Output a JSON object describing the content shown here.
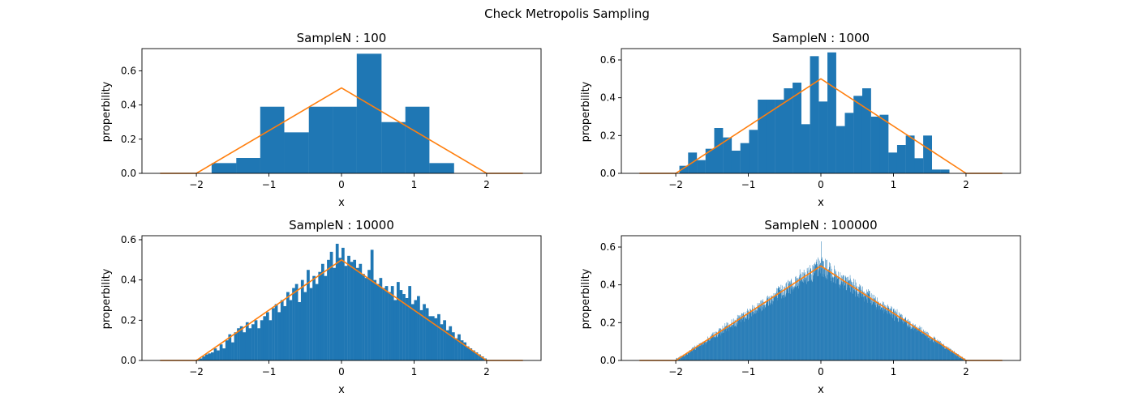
{
  "figure": {
    "title": "Check Metropolis Sampling"
  },
  "colors": {
    "histogram": "#1f77b4",
    "density": "#ff7f0e",
    "frame": "#000000"
  },
  "chart_data": [
    {
      "type": "bar",
      "title": "SampleN : 100",
      "xlabel": "x",
      "ylabel": "properbility",
      "xlim": [
        -2.75,
        2.75
      ],
      "ylim": [
        0,
        0.73
      ],
      "xticks": [
        -2,
        -1,
        0,
        1,
        2
      ],
      "xtick_labels": [
        "−2",
        "−1",
        "0",
        "1",
        "2"
      ],
      "yticks": [
        0,
        0.2,
        0.4,
        0.6
      ],
      "ytick_labels": [
        "0.0",
        "0.2",
        "0.4",
        "0.6"
      ],
      "bin_edges": [
        -1.79,
        -1.45,
        -1.12,
        -0.79,
        -0.45,
        -0.12,
        0.21,
        0.55,
        0.88,
        1.21,
        1.55
      ],
      "values": [
        0.06,
        0.09,
        0.39,
        0.24,
        0.39,
        0.39,
        0.7,
        0.3,
        0.39,
        0.06
      ],
      "density_line": {
        "x": [
          -2.5,
          -2,
          0,
          2,
          2.5
        ],
        "y": [
          0,
          0,
          0.5,
          0,
          0
        ]
      }
    },
    {
      "type": "bar",
      "title": "SampleN : 1000",
      "xlabel": "x",
      "ylabel": "properbility",
      "xlim": [
        -2.75,
        2.75
      ],
      "ylim": [
        0,
        0.66
      ],
      "xticks": [
        -2,
        -1,
        0,
        1,
        2
      ],
      "xtick_labels": [
        "−2",
        "−1",
        "0",
        "1",
        "2"
      ],
      "yticks": [
        0,
        0.2,
        0.4,
        0.6
      ],
      "ytick_labels": [
        "0.0",
        "0.2",
        "0.4",
        "0.6"
      ],
      "bin_edges": [
        -1.95,
        -1.83,
        -1.71,
        -1.59,
        -1.47,
        -1.35,
        -1.23,
        -1.11,
        -0.99,
        -0.87,
        -0.75,
        -0.63,
        -0.51,
        -0.39,
        -0.27,
        -0.15,
        -0.03,
        0.09,
        0.21,
        0.33,
        0.45,
        0.57,
        0.69,
        0.81,
        0.93,
        1.05,
        1.17,
        1.29,
        1.41,
        1.53,
        1.65,
        1.77,
        1.89
      ],
      "values": [
        0.04,
        0.11,
        0.07,
        0.13,
        0.24,
        0.19,
        0.12,
        0.16,
        0.23,
        0.39,
        0.39,
        0.39,
        0.45,
        0.48,
        0.26,
        0.62,
        0.38,
        0.64,
        0.25,
        0.32,
        0.41,
        0.45,
        0.3,
        0.31,
        0.11,
        0.15,
        0.2,
        0.08,
        0.2,
        0.02,
        0.02,
        0.0
      ],
      "density_line": {
        "x": [
          -2.5,
          -2,
          0,
          2,
          2.5
        ],
        "y": [
          0,
          0,
          0.5,
          0,
          0
        ]
      }
    },
    {
      "type": "bar",
      "title": "SampleN : 10000",
      "xlabel": "x",
      "ylabel": "properbility",
      "xlim": [
        -2.75,
        2.75
      ],
      "ylim": [
        0,
        0.62
      ],
      "xticks": [
        -2,
        -1,
        0,
        1,
        2
      ],
      "xtick_labels": [
        "−2",
        "−1",
        "0",
        "1",
        "2"
      ],
      "yticks": [
        0,
        0.2,
        0.4,
        0.6
      ],
      "ytick_labels": [
        "0.0",
        "0.2",
        "0.4",
        "0.6"
      ],
      "hist_range": [
        -2,
        2
      ],
      "bin_count": 100,
      "values": [
        0.005,
        0.01,
        0.02,
        0.03,
        0.035,
        0.04,
        0.06,
        0.05,
        0.08,
        0.06,
        0.1,
        0.13,
        0.09,
        0.14,
        0.16,
        0.17,
        0.14,
        0.19,
        0.16,
        0.18,
        0.2,
        0.16,
        0.2,
        0.22,
        0.24,
        0.2,
        0.26,
        0.28,
        0.24,
        0.3,
        0.27,
        0.34,
        0.3,
        0.36,
        0.38,
        0.29,
        0.4,
        0.34,
        0.45,
        0.36,
        0.42,
        0.38,
        0.44,
        0.48,
        0.42,
        0.5,
        0.54,
        0.46,
        0.58,
        0.51,
        0.56,
        0.47,
        0.52,
        0.49,
        0.5,
        0.46,
        0.48,
        0.43,
        0.41,
        0.45,
        0.55,
        0.4,
        0.38,
        0.41,
        0.36,
        0.37,
        0.34,
        0.37,
        0.3,
        0.39,
        0.35,
        0.33,
        0.31,
        0.37,
        0.28,
        0.3,
        0.32,
        0.25,
        0.28,
        0.26,
        0.22,
        0.22,
        0.21,
        0.23,
        0.18,
        0.2,
        0.15,
        0.17,
        0.14,
        0.11,
        0.13,
        0.1,
        0.09,
        0.07,
        0.06,
        0.05,
        0.04,
        0.03,
        0.02,
        0.01
      ],
      "density_line": {
        "x": [
          -2.5,
          -2,
          0,
          2,
          2.5
        ],
        "y": [
          0,
          0,
          0.5,
          0,
          0
        ]
      }
    },
    {
      "type": "bar",
      "title": "SampleN : 100000",
      "xlabel": "x",
      "ylabel": "properbility",
      "xlim": [
        -2.75,
        2.75
      ],
      "ylim": [
        0,
        0.66
      ],
      "xticks": [
        -2,
        -1,
        0,
        1,
        2
      ],
      "xtick_labels": [
        "−2",
        "−1",
        "0",
        "1",
        "2"
      ],
      "yticks": [
        0,
        0.2,
        0.4,
        0.6
      ],
      "ytick_labels": [
        "0.0",
        "0.2",
        "0.4",
        "0.6"
      ],
      "hist_range": [
        -2,
        2
      ],
      "bin_count": 1000,
      "peak_spike": {
        "x": 0.0,
        "y": 0.63
      },
      "density_line": {
        "x": [
          -2.5,
          -2,
          0,
          2,
          2.5
        ],
        "y": [
          0,
          0,
          0.5,
          0,
          0
        ]
      }
    }
  ]
}
